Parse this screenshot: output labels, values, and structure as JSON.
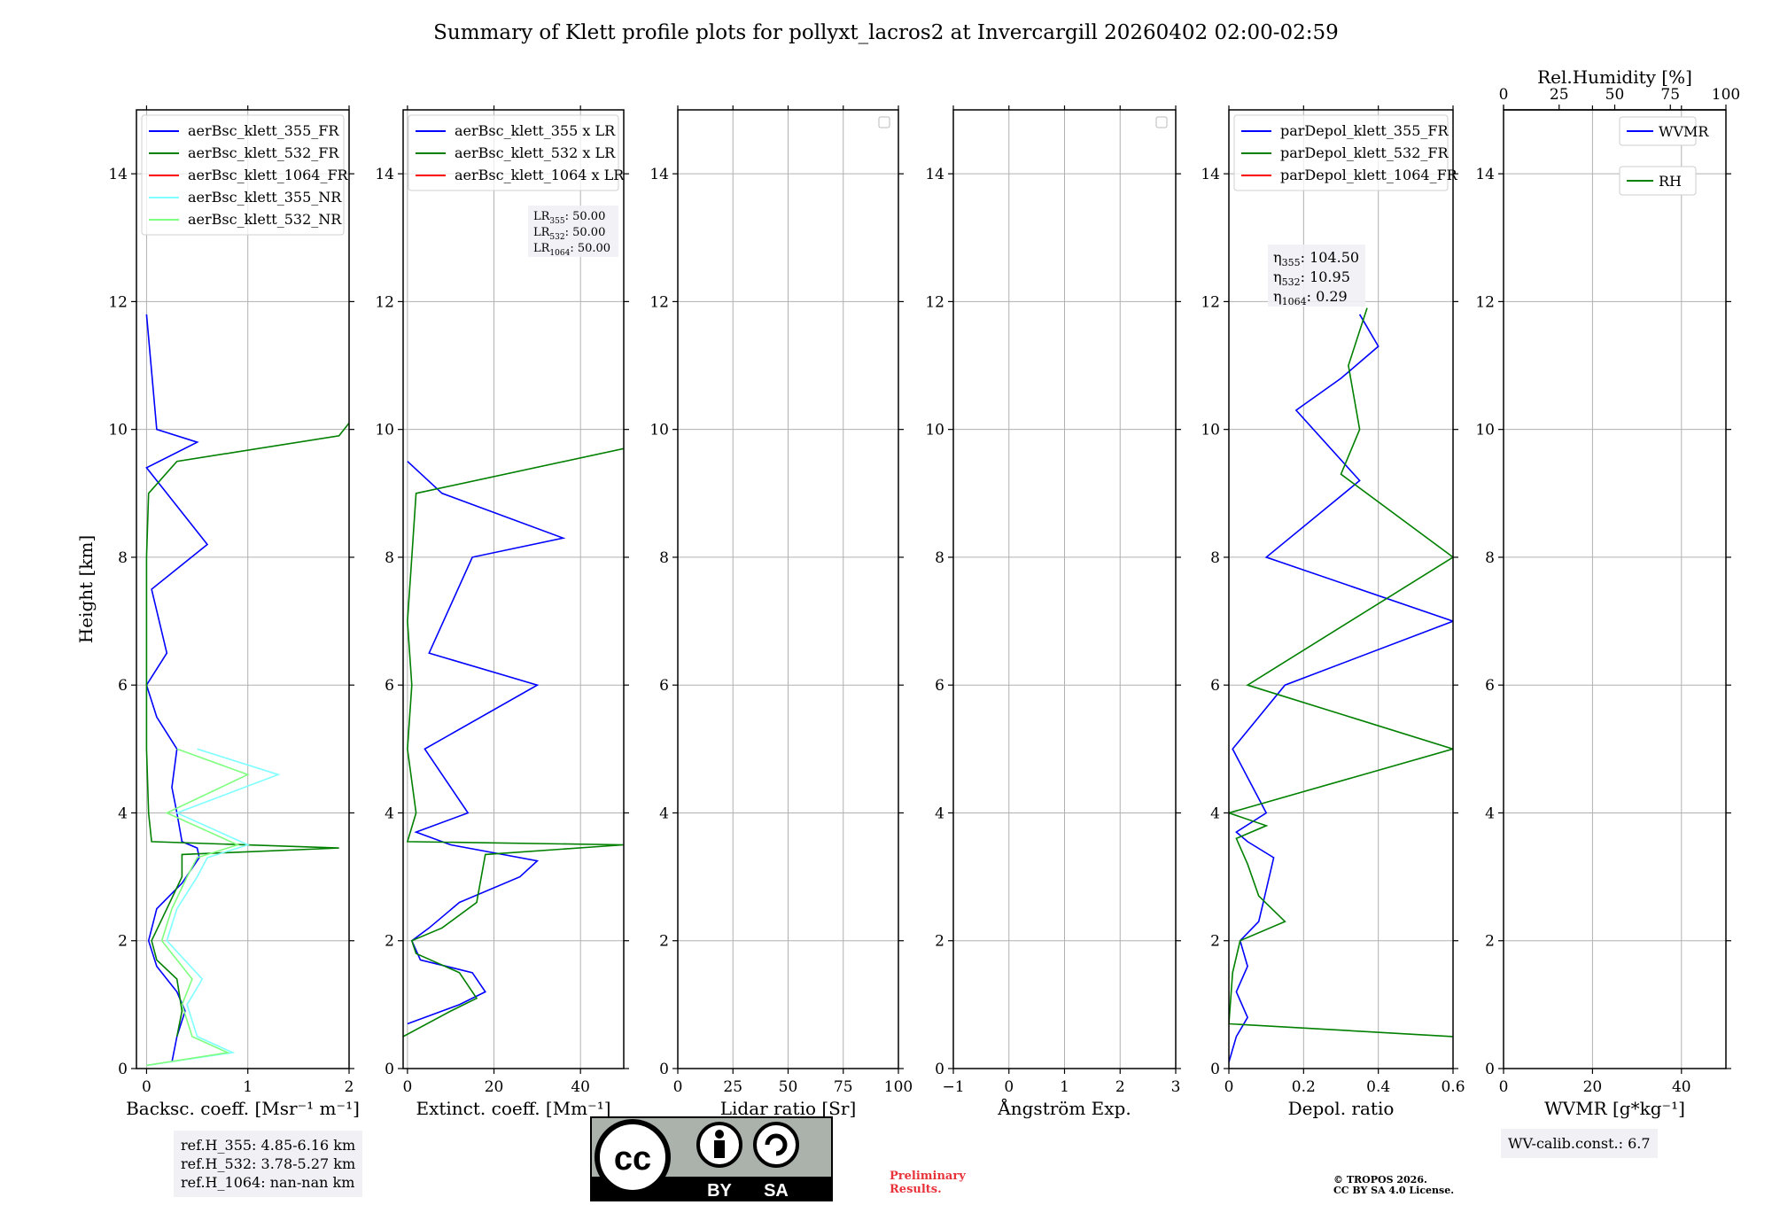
{
  "title": "Summary of Klett profile plots for pollyxt_lacros2 at Invercargill 20260402 02:00-02:59",
  "colors": {
    "blue": "#0000ff",
    "green": "#008000",
    "red": "#ff0000",
    "cyan": "#7fffff",
    "lightgreen": "#7fff7f",
    "grid": "#b0b0b0"
  },
  "chart_data": [
    {
      "type": "line",
      "name": "backscatter",
      "xlabel": "Backsc. coeff. [Msr⁻¹ m⁻¹]",
      "ylabel": "Height [km]",
      "xlim": [
        -0.1,
        2.0
      ],
      "ylim": [
        0,
        15
      ],
      "xticks": [
        0,
        1,
        2
      ],
      "yticks": [
        0,
        2,
        4,
        6,
        8,
        10,
        12,
        14
      ],
      "legend": [
        {
          "label": "aerBsc_klett_355_FR",
          "color": "#0000ff"
        },
        {
          "label": "aerBsc_klett_532_FR",
          "color": "#008000"
        },
        {
          "label": "aerBsc_klett_1064_FR",
          "color": "#ff0000"
        },
        {
          "label": "aerBsc_klett_355_NR",
          "color": "#7fffff"
        },
        {
          "label": "aerBsc_klett_532_NR",
          "color": "#7fff7f"
        }
      ],
      "series": [
        {
          "name": "aerBsc_klett_355_FR",
          "color": "#0000ff",
          "x": [
            0.25,
            0.3,
            0.38,
            0.3,
            0.1,
            0.02,
            0.1,
            0.35,
            0.52,
            0.5,
            0.35,
            0.3,
            0.25,
            0.3,
            0.1,
            0.0,
            0.2,
            0.05,
            0.6,
            0.2,
            0.0,
            0.5,
            0.1,
            0.0
          ],
          "y": [
            0.1,
            0.5,
            0.9,
            1.2,
            1.6,
            2.0,
            2.5,
            2.9,
            3.3,
            3.45,
            3.55,
            4.0,
            4.4,
            5.0,
            5.5,
            6.0,
            6.5,
            7.5,
            8.2,
            9.0,
            9.4,
            9.8,
            10.0,
            11.8
          ]
        },
        {
          "name": "aerBsc_klett_532_FR",
          "color": "#008000",
          "x": [
            0.3,
            0.35,
            0.3,
            0.1,
            0.05,
            0.2,
            0.35,
            0.35,
            1.9,
            0.05,
            0.02,
            0.0,
            0.0,
            0.0,
            0.0,
            0.02,
            0.3,
            1.9,
            2.0
          ],
          "y": [
            0.5,
            0.9,
            1.4,
            1.7,
            2.0,
            2.5,
            3.0,
            3.35,
            3.45,
            3.55,
            4.0,
            5.0,
            6.0,
            7.0,
            8.0,
            9.0,
            9.5,
            9.9,
            10.1
          ]
        },
        {
          "name": "aerBsc_klett_355_NR",
          "color": "#7fffff",
          "x": [
            0.0,
            0.85,
            0.5,
            0.4,
            0.55,
            0.2,
            0.3,
            0.5,
            0.6,
            1.0,
            0.3,
            1.3,
            0.5
          ],
          "y": [
            0.05,
            0.25,
            0.5,
            1.0,
            1.4,
            2.0,
            2.5,
            3.0,
            3.3,
            3.5,
            4.0,
            4.6,
            5.0
          ]
        },
        {
          "name": "aerBsc_klett_532_NR",
          "color": "#7fff7f",
          "x": [
            0.0,
            0.8,
            0.45,
            0.35,
            0.45,
            0.15,
            0.25,
            0.4,
            0.5,
            0.9,
            0.2,
            1.0,
            0.3
          ],
          "y": [
            0.05,
            0.25,
            0.5,
            1.0,
            1.4,
            2.0,
            2.5,
            3.0,
            3.3,
            3.5,
            4.0,
            4.6,
            5.0
          ]
        }
      ],
      "annotation_lines": [
        "ref.H_355: 4.85-6.16 km",
        "ref.H_532: 3.78-5.27 km",
        "ref.H_1064: nan-nan km"
      ]
    },
    {
      "type": "line",
      "name": "extinction",
      "xlabel": "Extinct. coeff. [Mm⁻¹]",
      "xlim": [
        -1,
        50
      ],
      "ylim": [
        0,
        15
      ],
      "xticks": [
        0,
        20,
        40
      ],
      "yticks": [
        0,
        2,
        4,
        6,
        8,
        10,
        12,
        14
      ],
      "legend": [
        {
          "label": "aerBsc_klett_355 x LR",
          "color": "#0000ff"
        },
        {
          "label": "aerBsc_klett_532 x LR",
          "color": "#008000"
        },
        {
          "label": "aerBsc_klett_1064 x LR",
          "color": "#ff0000"
        }
      ],
      "lr_box": [
        "LR355: 50.00",
        "LR532: 50.00",
        "LR1064: 50.00"
      ],
      "series": [
        {
          "name": "aerBsc_klett_355 x LR",
          "color": "#0000ff",
          "x": [
            0,
            12,
            18,
            15,
            3,
            1,
            5,
            12,
            26,
            30,
            10,
            2,
            14,
            4,
            30,
            5,
            15,
            36,
            8,
            0
          ],
          "y": [
            0.7,
            1.0,
            1.2,
            1.5,
            1.7,
            2.0,
            2.2,
            2.6,
            3.0,
            3.25,
            3.5,
            3.7,
            4.0,
            5.0,
            6.0,
            6.5,
            8.0,
            8.3,
            9.0,
            9.5
          ]
        },
        {
          "name": "aerBsc_klett_532 x LR",
          "color": "#008000",
          "x": [
            -1,
            10,
            16,
            12,
            2,
            1,
            8,
            16,
            18,
            50,
            0,
            2,
            0,
            1,
            0,
            1,
            2,
            50
          ],
          "y": [
            0.5,
            0.9,
            1.1,
            1.5,
            1.8,
            2.0,
            2.2,
            2.6,
            3.35,
            3.5,
            3.55,
            4.0,
            5.0,
            6.0,
            7.0,
            8.0,
            9.0,
            9.7
          ]
        }
      ]
    },
    {
      "type": "line",
      "name": "lidar_ratio",
      "xlabel": "Lidar ratio [Sr]",
      "xlim": [
        0,
        100
      ],
      "ylim": [
        0,
        15
      ],
      "xticks": [
        0,
        25,
        50,
        75,
        100
      ],
      "yticks": [
        0,
        2,
        4,
        6,
        8,
        10,
        12,
        14
      ],
      "series": []
    },
    {
      "type": "line",
      "name": "angstrom",
      "xlabel": "Ångström Exp.",
      "xlim": [
        -1,
        3
      ],
      "ylim": [
        0,
        15
      ],
      "xticks": [
        -1,
        0,
        1,
        2,
        3
      ],
      "yticks": [
        0,
        2,
        4,
        6,
        8,
        10,
        12,
        14
      ],
      "series": []
    },
    {
      "type": "line",
      "name": "depol",
      "xlabel": "Depol. ratio",
      "xlim": [
        0,
        0.6
      ],
      "ylim": [
        0,
        15
      ],
      "xticks": [
        0.0,
        0.2,
        0.4,
        0.6
      ],
      "yticks": [
        0,
        2,
        4,
        6,
        8,
        10,
        12,
        14
      ],
      "legend": [
        {
          "label": "parDepol_klett_355_FR",
          "color": "#0000ff"
        },
        {
          "label": "parDepol_klett_532_FR",
          "color": "#008000"
        },
        {
          "label": "parDepol_klett_1064_FR",
          "color": "#ff0000"
        }
      ],
      "eta_box": [
        "η355: 104.50",
        "η532: 10.95",
        "η1064: 0.29"
      ],
      "series": [
        {
          "name": "parDepol_klett_355_FR",
          "color": "#0000ff",
          "x": [
            0.0,
            0.02,
            0.05,
            0.02,
            0.05,
            0.03,
            0.08,
            0.1,
            0.12,
            0.05,
            0.02,
            0.1,
            0.01,
            0.15,
            0.6,
            0.1,
            0.35,
            0.18,
            0.3,
            0.4,
            0.35
          ],
          "y": [
            0.1,
            0.5,
            0.8,
            1.2,
            1.6,
            2.0,
            2.3,
            2.8,
            3.3,
            3.55,
            3.7,
            4.0,
            5.0,
            6.0,
            7.0,
            8.0,
            9.2,
            10.3,
            10.8,
            11.3,
            11.8
          ]
        },
        {
          "name": "parDepol_klett_532_FR",
          "color": "#008000",
          "x": [
            0.6,
            0.0,
            0.01,
            0.03,
            0.15,
            0.08,
            0.05,
            0.02,
            0.1,
            0.0,
            0.6,
            0.05,
            0.6,
            0.3,
            0.35,
            0.32,
            0.37
          ],
          "y": [
            0.5,
            0.7,
            1.5,
            2.0,
            2.3,
            2.7,
            3.2,
            3.6,
            3.8,
            4.0,
            5.0,
            6.0,
            8.0,
            9.3,
            10.0,
            11.0,
            11.9
          ]
        }
      ]
    },
    {
      "type": "line",
      "name": "water_vapor",
      "xlabel": "WVMR [g*kg⁻¹]",
      "xlabel_top": "Rel.Humidity [%]",
      "xlim": [
        0,
        50
      ],
      "xlim_top": [
        0,
        100
      ],
      "ylim": [
        0,
        15
      ],
      "xticks": [
        0,
        20,
        40
      ],
      "xticks_top": [
        0,
        25,
        50,
        75,
        100
      ],
      "yticks": [
        0,
        2,
        4,
        6,
        8,
        10,
        12,
        14
      ],
      "legend": [
        {
          "label": "WVMR",
          "color": "#0000ff"
        },
        {
          "label": "RH",
          "color": "#008000"
        }
      ],
      "annotation": "WV-calib.const.: 6.7",
      "series": []
    }
  ],
  "footer": {
    "prelim": [
      "Preliminary",
      "Results."
    ],
    "copyright": [
      "© TROPOS 2026.",
      "CC BY SA 4.0 License."
    ],
    "cc_labels": [
      "cc",
      "BY",
      "SA"
    ]
  }
}
